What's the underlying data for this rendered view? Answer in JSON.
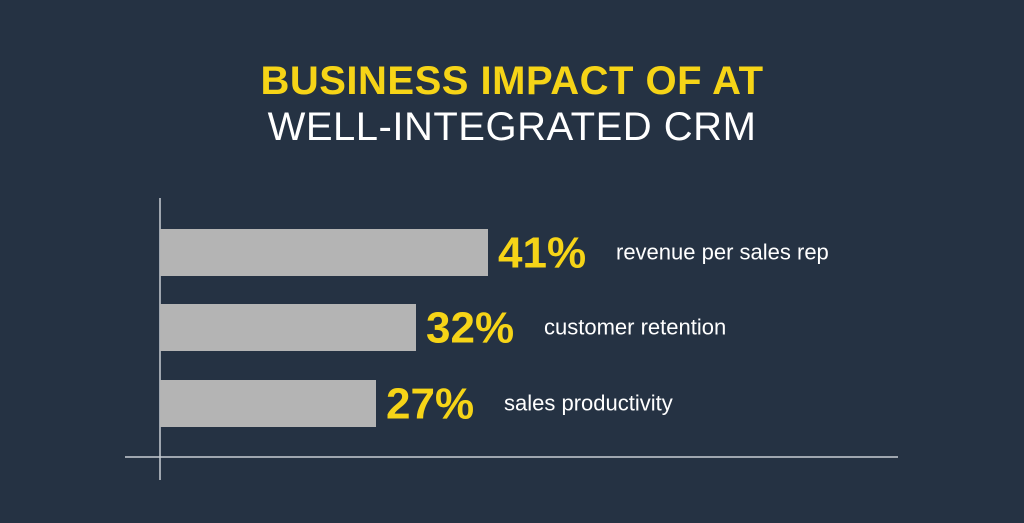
{
  "title": {
    "line1": "BUSINESS IMPACT OF AT",
    "line2": "WELL-INTEGRATED CRM"
  },
  "colors": {
    "background": "#253243",
    "accent": "#F6D417",
    "bar": "#B4B4B4",
    "axis": "#C8CDD3",
    "text": "#FFFFFF"
  },
  "chart_data": {
    "type": "bar",
    "orientation": "horizontal",
    "categories": [
      "revenue per sales rep",
      "customer retention",
      "sales productivity"
    ],
    "values": [
      41,
      32,
      27
    ],
    "value_labels": [
      "41%",
      "32%",
      "27%"
    ],
    "title": "BUSINESS IMPACT OF AT WELL-INTEGRATED CRM",
    "xlabel": "",
    "ylabel": "",
    "unit": "%",
    "grid": false,
    "legend": "none"
  }
}
